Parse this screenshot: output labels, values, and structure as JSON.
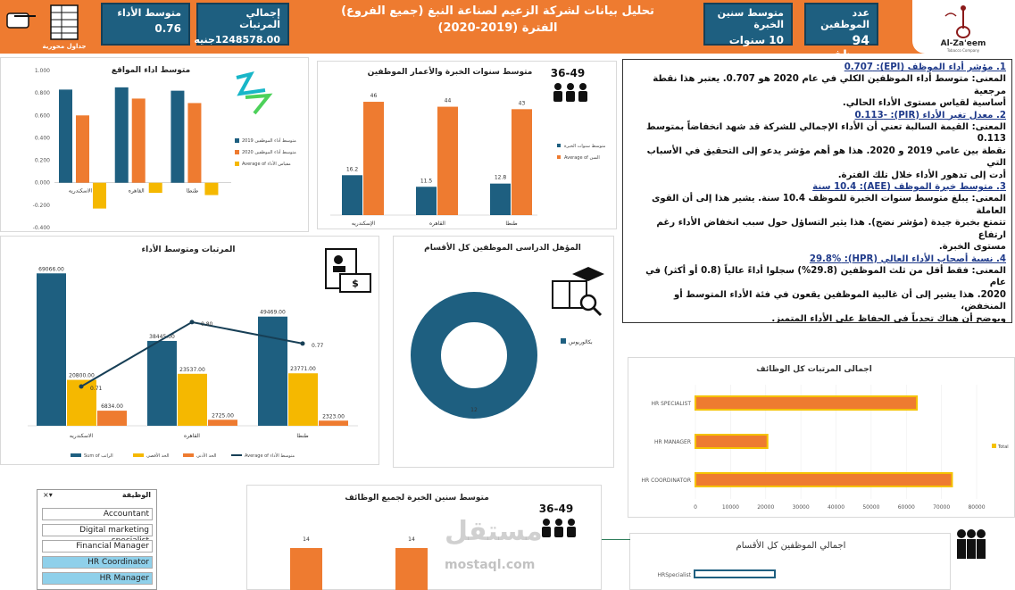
{
  "header": {
    "title_line1": "تحليل بيانات لشركة الزعيم لصناعة النبغ (جميع الفروع)",
    "title_line2": "الفترة (2019-2020)",
    "nav_caption": "جداول محورية",
    "logo_text": "Al-Za'eem",
    "logo_sub": "Tobacco Company",
    "color": "#ee7b30",
    "kpi_color": "#1e5f80"
  },
  "kpis": [
    {
      "label": "عدد الموظفين",
      "value": "94 موظف"
    },
    {
      "label": "متوسط سنين الخبرة",
      "value": "10 سنوات"
    },
    {
      "label": "إجمالي المرتبات",
      "value": "1248578.00جنيه"
    },
    {
      "label": "متوسط الأداء",
      "value": "0.76"
    }
  ],
  "icons": {
    "age_text": "36-49"
  },
  "textbox": {
    "lines": [
      {
        "t": "1. مؤشر أداء الموظف (EPI): 0.707",
        "h": true
      },
      {
        "t": "المعنى: متوسط أداء الموظفين الكلي في عام 2020 هو 0.707. يعتبر هذا نقطة مرجعية",
        "h": false
      },
      {
        "t": "أساسية لقياس مستوى الأداء الحالي.",
        "h": false
      },
      {
        "t": "2. معدل تغير الأداء (PIR): -0.113",
        "h": true
      },
      {
        "t": "المعنى: القيمة السالبة تعني أن الأداء الإجمالي للشركة قد شهد انخفاضاً بمتوسط 0.113",
        "h": false
      },
      {
        "t": "نقطة بين عامي 2019 و 2020. هذا هو أهم مؤشر يدعو إلى التحقيق في الأسباب التي",
        "h": false
      },
      {
        "t": "أدت إلى تدهور الأداء خلال تلك الفترة.",
        "h": false
      },
      {
        "t": "3. متوسط خبرة الموظف (AEE): 10.4 سنة",
        "h": true
      },
      {
        "t": "المعنى: يبلغ متوسط سنوات الخبرة للموظف 10.4 سنة. يشير هذا إلى أن القوى العاملة",
        "h": false
      },
      {
        "t": "تتمتع بخبرة جيدة (مؤشر نضج). هذا يثير التساؤل حول سبب انخفاض الأداء رغم ارتفاع",
        "h": false
      },
      {
        "t": "مستوى الخبرة.",
        "h": false
      },
      {
        "t": "4. نسبة أصحاب الأداء العالي (HPR): 29.8%",
        "h": true
      },
      {
        "t": "المعنى: فقط أقل من ثلث الموظفين (29.8%) سجلوا أداءً عالياً (0.8 أو أكثر) في عام",
        "h": false
      },
      {
        "t": "2020. هذا يشير إلى أن غالبية الموظفين يقعون في فئة الأداء المتوسط أو المنخفض،",
        "h": false
      },
      {
        "t": "ويوضح أن هناك تحدياً في الحفاظ على الأداء المتميز.",
        "h": false
      }
    ]
  },
  "slicer": {
    "title": "الوظيفة",
    "items": [
      {
        "label": "Accountant",
        "selected": false
      },
      {
        "label": "Digital marketing specialist",
        "selected": false
      },
      {
        "label": "Financial Manager",
        "selected": false
      },
      {
        "label": "HR Coordinator",
        "selected": true
      },
      {
        "label": "HR Manager",
        "selected": true
      }
    ]
  },
  "watermark": {
    "ar": "مستقل",
    "en": "mostaql.com"
  },
  "chart_data": [
    {
      "id": "perf",
      "type": "bar",
      "title": "متوسط اداء المواقع",
      "categories": [
        "الاسكندريه",
        "القاهره",
        "طنطا"
      ],
      "series": [
        {
          "name": "متوسط أداء الموظفين 2019",
          "values": [
            0.83,
            0.85,
            0.82
          ],
          "color": "#1e5f80"
        },
        {
          "name": "متوسط أداء الموظفين 2020",
          "values": [
            0.6,
            0.75,
            0.71
          ],
          "color": "#ee7b30"
        },
        {
          "name": "Average of مقياس الأداء",
          "values": [
            -0.23,
            -0.09,
            -0.11
          ],
          "color": "#f5b800"
        }
      ],
      "yticks": [
        "1.000",
        "0.800",
        "0.600",
        "0.400",
        "0.200",
        "0.000",
        "-0.200",
        "-0.400"
      ],
      "ylim": [
        -0.4,
        1.0
      ]
    },
    {
      "id": "exp",
      "type": "bar",
      "title": "متوسط سنوات الخبرة والأعمار الموظفين",
      "categories": [
        "الإسكندريه",
        "القاهره",
        "طنطا"
      ],
      "series": [
        {
          "name": "متوسط سنوات الخبرة",
          "values": [
            16.2,
            11.5,
            12.8
          ],
          "labels": [
            "16.2",
            "11.5",
            "12.8"
          ],
          "color": "#1e5f80"
        },
        {
          "name": "Average of السن",
          "values": [
            46,
            44,
            43
          ],
          "labels": [
            "46",
            "44",
            "43"
          ],
          "color": "#ee7b30"
        }
      ],
      "ylim": [
        0,
        50
      ]
    },
    {
      "id": "sal",
      "type": "bar",
      "title": "المرتبات ومتوسط الأداء",
      "categories": [
        "الاسكندريه",
        "القاهره",
        "طنطا"
      ],
      "series": [
        {
          "name": "Sum of الراتب",
          "values": [
            69066,
            38445,
            49469
          ],
          "labels": [
            "69066.00",
            "38445.00",
            "49469.00"
          ],
          "color": "#1e5f80"
        },
        {
          "name": "الحد الأقصى",
          "values": [
            20800,
            23537,
            23771
          ],
          "labels": [
            "20800.00",
            "23537.00",
            "23771.00"
          ],
          "color": "#f5b800"
        },
        {
          "name": "الحد الأدنى",
          "values": [
            6834,
            2725,
            2323
          ],
          "labels": [
            "6834.00",
            "2725.00",
            "2323.00"
          ],
          "color": "#ee7b30"
        },
        {
          "name": "Average of متوسط الأداء",
          "values": [
            0.71,
            0.8,
            0.77
          ],
          "labels": [
            "0.71",
            "0.80",
            "0.77"
          ],
          "color": "#173f56"
        }
      ],
      "ylim": [
        0,
        72000
      ]
    },
    {
      "id": "edu",
      "type": "pie",
      "title": "المؤهل الدراسى الموظفين كل الأقسام",
      "categories": [
        "بكالوريوس"
      ],
      "values": [
        12
      ],
      "labels": [
        "12"
      ],
      "colors": [
        "#1e5f80"
      ]
    },
    {
      "id": "jobsal",
      "type": "bar",
      "orientation": "horizontal",
      "title": "اجمالى المرتبات كل الوظائف",
      "categories": [
        "HR SPECIALIST",
        "HR MANAGER",
        "HR COORDINATOR"
      ],
      "series": [
        {
          "name": "Total",
          "values": [
            63000,
            20500,
            73000
          ],
          "color": "#ee7b30"
        }
      ],
      "xticks": [
        "0",
        "10000",
        "20000",
        "30000",
        "40000",
        "50000",
        "60000",
        "70000",
        "80000"
      ],
      "xlim": [
        0,
        80000
      ]
    },
    {
      "id": "jobexp",
      "type": "bar",
      "title": "متوسط سنين الخبرة لجميع الوظائف",
      "series": [
        {
          "name": "",
          "values": [
            14,
            14
          ],
          "labels": [
            "14",
            "14"
          ],
          "color": "#ee7b30"
        }
      ]
    },
    {
      "id": "jobcount",
      "type": "bar",
      "orientation": "horizontal",
      "title": "اجمالي الموظفين كل الأقسام",
      "categories": [
        "HRSpecialist"
      ],
      "series": [
        {
          "name": "",
          "values": [
            1
          ],
          "color": "#1e5f80"
        }
      ]
    }
  ]
}
